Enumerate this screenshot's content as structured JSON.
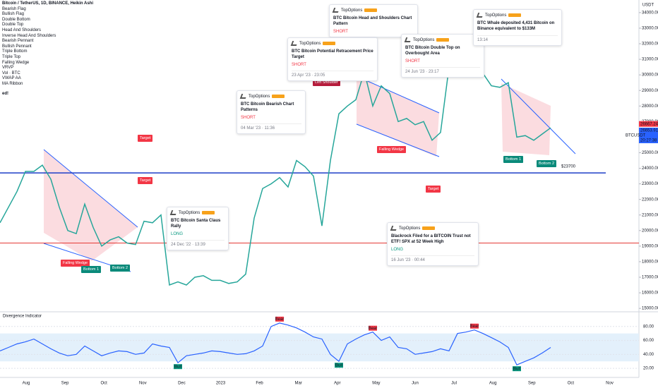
{
  "header": {
    "title": "Bitcoin / TetherUS, 1D, BINANCE, Heikin Ashi"
  },
  "indicators": [
    "Bearish Flag",
    "Bullish Flag",
    "Double Bottom",
    "Double Top",
    "Head And Shoulders",
    "Inverse Head And Shoulders",
    "Bearish Pennant",
    "Bullish Pennant",
    "Triple Bottom",
    "Triple Top",
    "Falling Wedge",
    "VRVP",
    "Vol · BTC",
    "VWAP AA",
    "MA Ribbon"
  ],
  "overflow_text": "ed!",
  "chart_data": {
    "type": "line",
    "currency": "USDT",
    "x_labels": [
      "Aug",
      "Sep",
      "Oct",
      "Nov",
      "Dec",
      "2023",
      "Feb",
      "Mar",
      "Apr",
      "May",
      "Jun",
      "Jul",
      "Aug",
      "Sep",
      "Oct",
      "Nov"
    ],
    "series": [
      {
        "name": "BTCUSDT",
        "color": "#26a69a",
        "values": [
          20500,
          21500,
          22500,
          23800,
          23800,
          24200,
          23300,
          21500,
          20000,
          19800,
          21700,
          20200,
          19000,
          19400,
          19600,
          19200,
          19100,
          20600,
          20500,
          21000,
          16500,
          16700,
          16500,
          17000,
          17100,
          16800,
          16800,
          16600,
          16700,
          17200,
          20800,
          22700,
          23000,
          23400,
          22800,
          24500,
          24100,
          23500,
          20300,
          24500,
          27500,
          28000,
          28400,
          30200,
          28000,
          29300,
          28800,
          27000,
          27200,
          26800,
          27000,
          25800,
          26300,
          30500,
          30400,
          30200,
          30300,
          30100,
          29300,
          29200,
          29500,
          26000,
          26100,
          25800,
          26200,
          26600
        ]
      }
    ],
    "ylim": [
      14780,
      34810
    ],
    "yticks": [
      {
        "value": 15000,
        "label": "15000.00"
      },
      {
        "value": 16000,
        "label": "16000.00"
      },
      {
        "value": 17000,
        "label": "17000.00"
      },
      {
        "value": 18000,
        "label": "18000.00"
      },
      {
        "value": 19000,
        "label": "19000.00"
      },
      {
        "value": 20000,
        "label": "20000.00"
      },
      {
        "value": 21000,
        "label": "21000.00"
      },
      {
        "value": 22000,
        "label": "22000.00"
      },
      {
        "value": 23000,
        "label": "23000.00"
      },
      {
        "value": 24000,
        "label": "24000.00"
      },
      {
        "value": 25000,
        "label": "25000.00"
      },
      {
        "value": 26000,
        "label": "26000.00"
      },
      {
        "value": 27000,
        "label": "27000.00"
      },
      {
        "value": 28000,
        "label": "28000.00"
      },
      {
        "value": 29000,
        "label": "29000.00"
      },
      {
        "value": 30000,
        "label": "30000.00"
      },
      {
        "value": 31000,
        "label": "31000.00"
      },
      {
        "value": 32000,
        "label": "32000.00"
      },
      {
        "value": 33000,
        "label": "33000.00"
      },
      {
        "value": 34000,
        "label": "34000.00"
      }
    ],
    "support": {
      "value": 23700,
      "label": "$23700",
      "color": "#1e3ec8"
    },
    "resistance": {
      "value": 19200,
      "color": "#e53935"
    },
    "high_price": 26667.24,
    "close_price": 26653.91,
    "symbol": "BTCUSDT",
    "countdown": "20:27:38",
    "oscillator": {
      "title": "Divergence Indicator",
      "color": "#2962ff",
      "ylim": [
        10,
        97
      ],
      "band": [
        30,
        70
      ],
      "yticks": [
        {
          "value": 80,
          "label": "80.00"
        },
        {
          "value": 60,
          "label": "60.00"
        },
        {
          "value": 40,
          "label": "40.00"
        },
        {
          "value": 20,
          "label": "20.00"
        }
      ],
      "values": [
        45,
        50,
        55,
        58,
        62,
        55,
        48,
        42,
        38,
        40,
        52,
        45,
        38,
        42,
        45,
        44,
        40,
        42,
        55,
        52,
        50,
        28,
        38,
        40,
        42,
        45,
        44,
        42,
        40,
        41,
        45,
        52,
        80,
        85,
        82,
        78,
        72,
        65,
        62,
        40,
        30,
        55,
        62,
        68,
        72,
        60,
        65,
        50,
        48,
        40,
        42,
        44,
        48,
        45,
        70,
        72,
        75,
        70,
        64,
        58,
        50,
        25,
        30,
        35,
        42,
        50
      ],
      "bear_label": "Bear",
      "bull_label": "Bull"
    }
  },
  "patterns": {
    "left_shoulder": "Left Shoulder",
    "falling_wedge": "Falling Wedge",
    "bottom_1": "Bottom 1",
    "bottom_2": "Bottom 2",
    "target": "Target"
  },
  "ideas": [
    {
      "author": "TopOptions",
      "title": "BTC Bitcoin Head and Shoulders Chart Pattern",
      "signal": "SHORT"
    },
    {
      "author": "TopOptions",
      "title": "BTC Bitcoin Potential Retracement Price Target",
      "signal": "SHORT",
      "time": "23 Apr '23 · 23:05"
    },
    {
      "author": "TopOptions",
      "title": "BTC Bitcoin Double Top on Overbought Area",
      "signal": "SHORT",
      "time": "24 Jun '23 · 23:17"
    },
    {
      "author": "TopOptions",
      "title": "BTC Whale deposited 4,431 Bitcoin on Binance equivalent to $133M",
      "time": "13:14"
    },
    {
      "author": "TopOptions",
      "title": "BTC Bitcoin Bearish Chart Patterns",
      "signal": "SHORT",
      "time": "04 Mar '23 · 11:36"
    },
    {
      "author": "TopOptions",
      "title": "BTC Bitcoin Santa Claus Rally",
      "signal": "LONG",
      "time": "24 Dec '22 · 13:39"
    },
    {
      "author": "TopOptions",
      "title": "Blackrock Filed for a BITCOIN Trust not ETF! SPX at 52 Week High",
      "signal": "LONG",
      "time": "16 Jun '23 · 00:44"
    }
  ]
}
